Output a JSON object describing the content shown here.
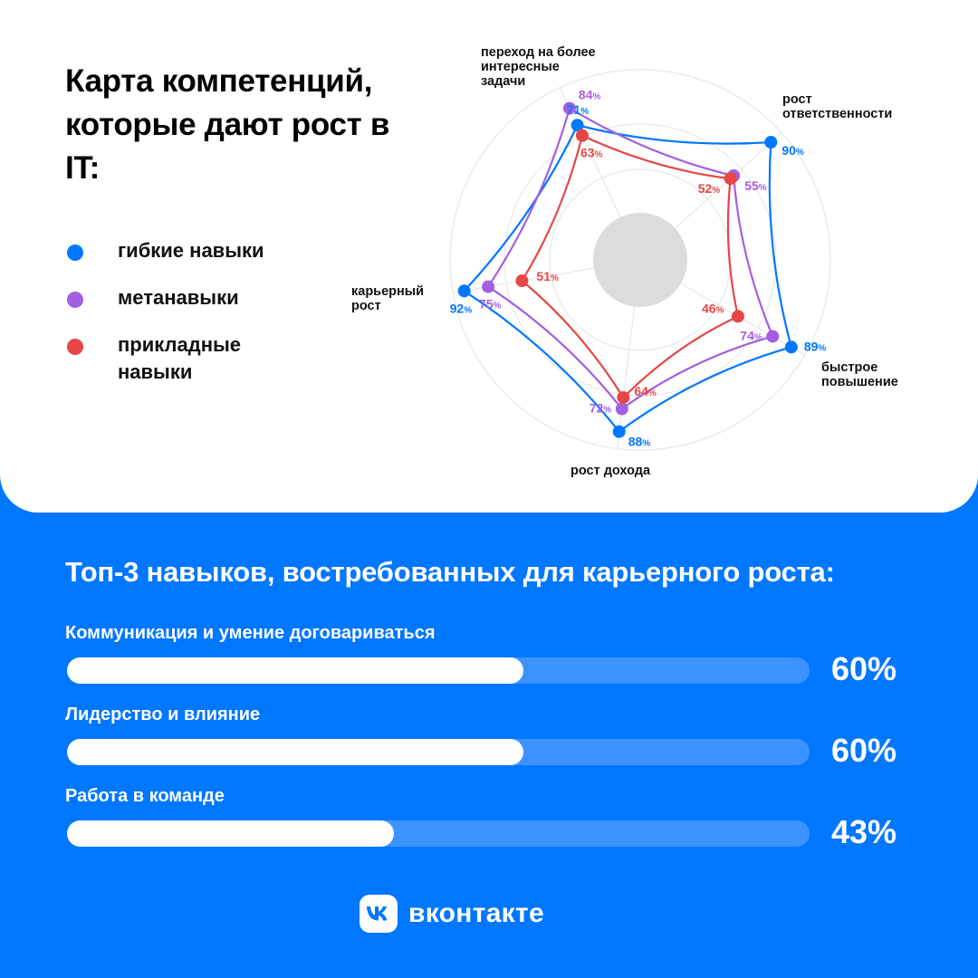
{
  "header": {
    "title": "Карта компетенций, которые дают рост в IT:"
  },
  "legend": [
    {
      "label": "гибкие навыки",
      "color": "#0077FF"
    },
    {
      "label": "метанавыки",
      "color": "#A45FE0"
    },
    {
      "label": "прикладные навыки",
      "color": "#E64646"
    }
  ],
  "chart_data": [
    {
      "type": "radar",
      "title": "Карта компетенций, которые дают рост в IT:",
      "categories": [
        "переход на более интересные задачи",
        "рост ответственности",
        "быстрое повышение",
        "рост дохода",
        "карьерный рост"
      ],
      "series": [
        {
          "name": "гибкие навыки",
          "color": "#0077FF",
          "values": [
            71,
            90,
            89,
            88,
            92
          ]
        },
        {
          "name": "метанавыки",
          "color": "#A45FE0",
          "values": [
            84,
            55,
            74,
            72,
            75
          ]
        },
        {
          "name": "прикладные навыки",
          "color": "#E64646",
          "values": [
            63,
            52,
            46,
            64,
            51
          ]
        }
      ],
      "unit": "%",
      "range": [
        0,
        100
      ]
    },
    {
      "type": "bar",
      "orientation": "horizontal",
      "title": "Топ-3 навыков, востребованных для карьерного роста:",
      "categories": [
        "Коммуникация и умение договариваться",
        "Лидерство и влияние",
        "Работа в команде"
      ],
      "values": [
        60,
        60,
        43
      ],
      "labels": [
        "60%",
        "60%",
        "43%"
      ],
      "range": [
        0,
        100
      ]
    }
  ],
  "footer": {
    "brand": "вконтакте",
    "logo_letters": "VK"
  }
}
